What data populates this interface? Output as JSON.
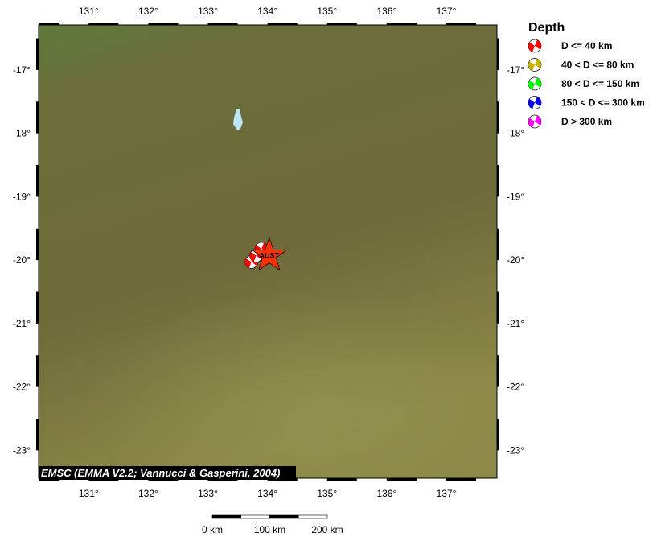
{
  "map": {
    "lon_range": [
      130.16,
      137.85
    ],
    "lat_range": [
      -23.44,
      -16.29
    ],
    "lon_ticks": [
      131,
      132,
      133,
      134,
      135,
      136,
      137
    ],
    "lat_ticks": [
      -17,
      -18,
      -19,
      -20,
      -21,
      -22,
      -23
    ],
    "lon_labels": [
      "131°",
      "132°",
      "133°",
      "134°",
      "135°",
      "136°",
      "137°"
    ],
    "lat_labels": [
      "-17°",
      "-18°",
      "-19°",
      "-20°",
      "-21°",
      "-22°",
      "-23°"
    ],
    "land_color": "#6e6b3a",
    "lake_color": "#bfe6f7",
    "credit": "EMSC (EMMA V2.2; Vannucci & Gasperini, 2004)",
    "station": {
      "label": "AUST",
      "lon": 134.03,
      "lat": -19.93,
      "color": "#ff3300"
    },
    "events": [
      {
        "lon": 133.73,
        "lat": -20.03,
        "depth_class": 0
      },
      {
        "lon": 133.81,
        "lat": -19.93,
        "depth_class": 0
      },
      {
        "lon": 133.9,
        "lat": -19.82,
        "depth_class": 0
      }
    ]
  },
  "legend": {
    "title": "Depth",
    "items": [
      {
        "label": "D <= 40 km",
        "color": "#ff0000"
      },
      {
        "label": "40 < D <= 80 km",
        "color": "#c8b400"
      },
      {
        "label": "80 < D <= 150 km",
        "color": "#00ff00"
      },
      {
        "label": "150 < D <= 300 km",
        "color": "#0000ff"
      },
      {
        "label": "D > 300 km",
        "color": "#ff00ff"
      }
    ]
  },
  "scalebar": {
    "labels": [
      "0 km",
      "100 km",
      "200 km"
    ]
  }
}
